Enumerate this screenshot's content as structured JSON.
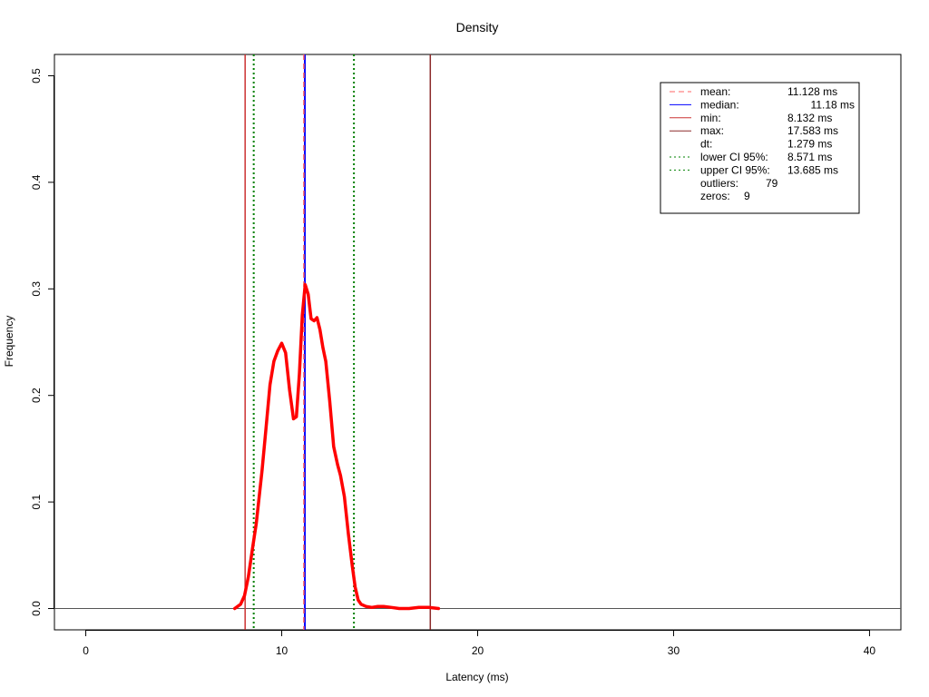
{
  "chart_data": {
    "type": "line",
    "title": "Density",
    "xlabel": "Latency (ms)",
    "ylabel": "Frequency",
    "xlim": [
      -1.6,
      41.6
    ],
    "ylim": [
      -0.02,
      0.52
    ],
    "xticks": [
      0,
      10,
      20,
      30,
      40
    ],
    "yticks": [
      0.0,
      0.1,
      0.2,
      0.3,
      0.4,
      0.5
    ],
    "ytick_labels": [
      "0.0",
      "0.1",
      "0.2",
      "0.3",
      "0.4",
      "0.5"
    ],
    "grid": false,
    "legend_position": "top-right",
    "series": [
      {
        "color": "#ff0000",
        "x": [
          7.6,
          7.9,
          8.1,
          8.3,
          8.5,
          8.7,
          9.0,
          9.2,
          9.4,
          9.6,
          9.8,
          10.0,
          10.2,
          10.4,
          10.6,
          10.75,
          10.9,
          11.05,
          11.2,
          11.35,
          11.5,
          11.65,
          11.8,
          11.95,
          12.1,
          12.25,
          12.45,
          12.65,
          12.85,
          13.0,
          13.2,
          13.4,
          13.6,
          13.75,
          13.9,
          14.05,
          14.3,
          14.6,
          14.9,
          15.2,
          15.6,
          16.0,
          16.5,
          17.0,
          17.5,
          18.0
        ],
        "y": [
          0.0,
          0.004,
          0.012,
          0.03,
          0.055,
          0.08,
          0.13,
          0.17,
          0.21,
          0.232,
          0.242,
          0.249,
          0.24,
          0.205,
          0.178,
          0.18,
          0.22,
          0.275,
          0.304,
          0.295,
          0.272,
          0.27,
          0.273,
          0.262,
          0.245,
          0.232,
          0.195,
          0.152,
          0.135,
          0.125,
          0.105,
          0.07,
          0.04,
          0.02,
          0.008,
          0.004,
          0.002,
          0.001,
          0.002,
          0.002,
          0.001,
          0.0,
          0.0,
          0.001,
          0.001,
          0.0
        ]
      }
    ],
    "reference_lines": [
      {
        "name": "min",
        "x": 8.132,
        "color": "#cc3333",
        "dash": "solid"
      },
      {
        "name": "lower CI 95%",
        "x": 8.571,
        "color": "#008000",
        "dash": "dotted"
      },
      {
        "name": "median",
        "x": 11.18,
        "color": "#0000ff",
        "dash": "solid"
      },
      {
        "name": "mean",
        "x": 11.128,
        "color": "#ff6666",
        "dash": "dashed"
      },
      {
        "name": "upper CI 95%",
        "x": 13.685,
        "color": "#008000",
        "dash": "dotted"
      },
      {
        "name": "max",
        "x": 17.583,
        "color": "#8b2a2a",
        "dash": "solid"
      }
    ],
    "hline": {
      "y": 0,
      "color": "#555555"
    },
    "legend": [
      {
        "label": "mean:",
        "value": "11.128 ms",
        "color": "#ff6666",
        "dash": "dashed"
      },
      {
        "label": "median:",
        "value": "11.18 ms",
        "color": "#0000ff",
        "dash": "solid"
      },
      {
        "label": "min:",
        "value": "8.132 ms",
        "color": "#cc3333",
        "dash": "solid"
      },
      {
        "label": "max:",
        "value": "17.583 ms",
        "color": "#8b2a2a",
        "dash": "solid"
      },
      {
        "label": "dt:",
        "value": "1.279 ms",
        "color": "",
        "dash": "none"
      },
      {
        "label": "lower CI 95%:",
        "value": "8.571 ms",
        "color": "#008000",
        "dash": "dotted"
      },
      {
        "label": "upper CI 95%:",
        "value": "13.685 ms",
        "color": "#008000",
        "dash": "dotted"
      },
      {
        "label": "outliers:",
        "value": "79",
        "color": "",
        "dash": "none"
      },
      {
        "label": "zeros:",
        "value": "9",
        "color": "",
        "dash": "none"
      }
    ]
  }
}
